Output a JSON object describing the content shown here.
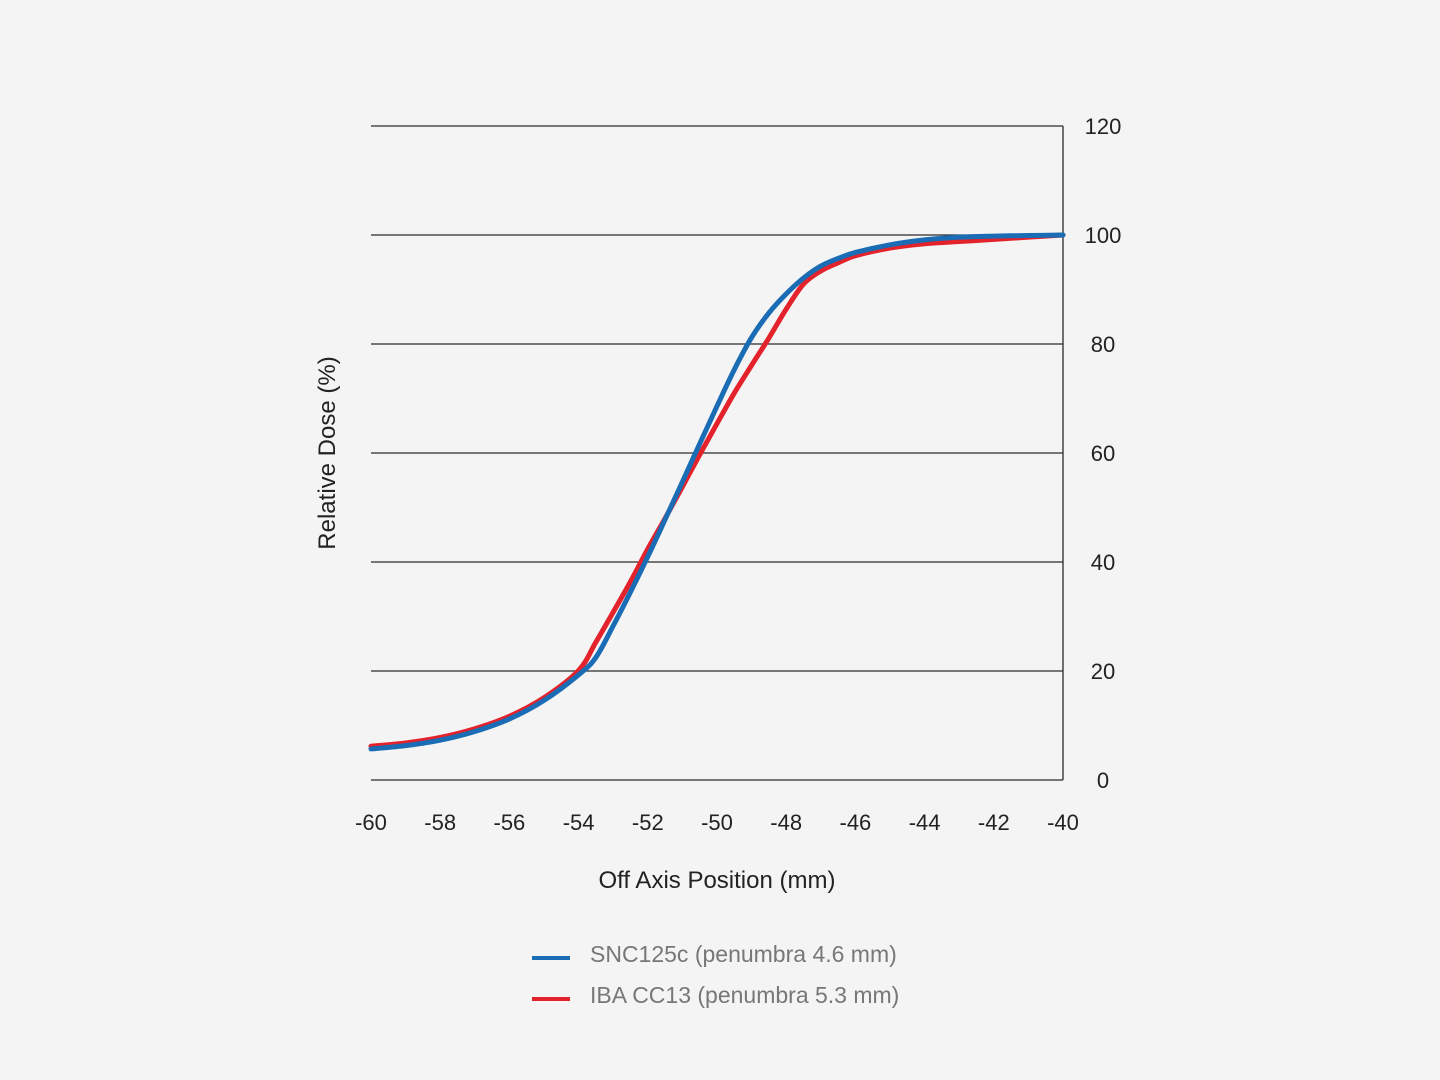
{
  "chart_data": {
    "type": "line",
    "title": "",
    "xlabel": "Off Axis Position (mm)",
    "ylabel": "Relative Dose (%)",
    "xlim": [
      -60,
      -40
    ],
    "ylim": [
      0,
      120
    ],
    "x_ticks": [
      -60,
      -58,
      -56,
      -54,
      -52,
      -50,
      -48,
      -46,
      -44,
      -42,
      -40
    ],
    "y_ticks": [
      0,
      20,
      40,
      60,
      80,
      100,
      120
    ],
    "y_axis_side": "right",
    "grid": "horizontal",
    "legend_position": "bottom",
    "series": [
      {
        "name": "SNC125c (penumbra 4.6 mm)",
        "color": "#1a6cb5",
        "x": [
          -60,
          -59,
          -58,
          -57,
          -56,
          -55,
          -54,
          -53.5,
          -53,
          -52.5,
          -52,
          -51.5,
          -51,
          -50.5,
          -50,
          -49.5,
          -49,
          -48.5,
          -48,
          -47.5,
          -47,
          -46.5,
          -46,
          -45,
          -44,
          -43,
          -42,
          -41,
          -40
        ],
        "y": [
          5.7,
          6.3,
          7.3,
          8.9,
          11.2,
          14.6,
          19.3,
          22.5,
          28.3,
          34.5,
          41.0,
          47.8,
          54.7,
          61.7,
          68.6,
          75.3,
          81.2,
          85.7,
          89.2,
          92.1,
          94.3,
          95.7,
          96.8,
          98.2,
          99.1,
          99.6,
          99.8,
          99.9,
          100.0
        ]
      },
      {
        "name": "IBA CC13 (penumbra 5.3 mm)",
        "color": "#e3222b",
        "x": [
          -60,
          -59,
          -58,
          -57,
          -56,
          -55,
          -54,
          -53.5,
          -53,
          -52.5,
          -52,
          -51.5,
          -51,
          -50.5,
          -50,
          -49.5,
          -49,
          -48.5,
          -48,
          -47.5,
          -47,
          -46.5,
          -46,
          -45,
          -44,
          -43,
          -42,
          -41,
          -40
        ],
        "y": [
          6.2,
          6.8,
          7.8,
          9.4,
          11.7,
          15.1,
          20.1,
          25.3,
          30.8,
          36.4,
          42.4,
          48.0,
          53.8,
          59.7,
          65.4,
          71.0,
          76.1,
          81.1,
          86.4,
          91.0,
          93.4,
          94.9,
          96.2,
          97.6,
          98.4,
          98.8,
          99.2,
          99.6,
          100.0
        ]
      }
    ]
  }
}
